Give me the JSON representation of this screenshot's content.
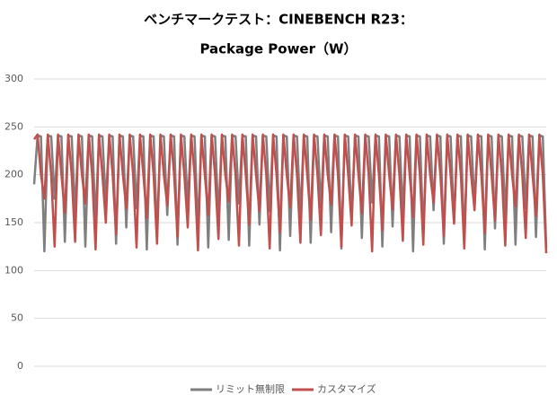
{
  "chart_data": {
    "type": "line",
    "title": "ベンチマークテスト：CINEBENCH R23：",
    "subtitle": "Package Power（W）",
    "ylim": [
      0,
      300
    ],
    "yticks": [
      0,
      50,
      100,
      150,
      200,
      250,
      300
    ],
    "grid": true,
    "series": [
      {
        "name": "リミット無制限",
        "color": "#7f7f7f",
        "values": [
          190,
          241,
          240,
          120,
          241,
          240,
          175,
          241,
          240,
          130,
          241,
          240,
          160,
          241,
          240,
          125,
          241,
          240,
          150,
          241,
          240,
          170,
          241,
          240,
          128,
          241,
          240,
          145,
          241,
          240,
          165,
          241,
          240,
          122,
          241,
          240,
          138,
          241,
          240,
          158,
          241,
          240,
          127,
          241,
          240,
          168,
          241,
          240,
          142,
          241,
          240,
          124,
          241,
          240,
          155,
          241,
          240,
          132,
          241,
          240,
          170,
          241,
          240,
          126,
          241,
          240,
          148,
          241,
          240,
          162,
          241,
          240,
          121,
          241,
          240,
          136,
          241,
          240,
          157,
          241,
          240,
          129,
          241,
          240,
          166,
          241,
          240,
          140,
          241,
          240,
          123,
          241,
          240,
          152,
          241,
          240,
          134,
          241,
          240,
          171,
          241,
          240,
          125,
          241,
          240,
          146,
          241,
          240,
          160,
          241,
          240,
          120,
          241,
          240,
          138,
          241,
          240,
          163,
          241,
          240,
          128,
          241,
          240,
          150,
          241,
          240,
          131,
          241,
          240,
          168,
          241,
          240,
          122,
          241,
          240,
          144,
          241,
          240,
          158,
          241,
          240,
          127,
          241,
          240,
          165,
          241,
          240,
          135,
          241,
          240,
          124
        ]
      },
      {
        "name": "カスタマイズ",
        "color": "#c0504d",
        "values": [
          237,
          242,
          200,
          175,
          242,
          200,
          125,
          242,
          200,
          160,
          242,
          200,
          130,
          242,
          200,
          170,
          242,
          200,
          122,
          242,
          200,
          150,
          242,
          200,
          138,
          242,
          200,
          165,
          242,
          200,
          124,
          242,
          200,
          155,
          242,
          200,
          128,
          242,
          200,
          168,
          242,
          200,
          135,
          242,
          200,
          145,
          242,
          200,
          121,
          242,
          200,
          158,
          242,
          200,
          133,
          242,
          200,
          172,
          242,
          200,
          126,
          242,
          200,
          148,
          242,
          200,
          162,
          242,
          200,
          123,
          242,
          200,
          140,
          242,
          200,
          166,
          242,
          200,
          129,
          242,
          200,
          153,
          242,
          200,
          137,
          242,
          200,
          169,
          242,
          200,
          125,
          242,
          200,
          147,
          242,
          200,
          160,
          242,
          200,
          120,
          242,
          200,
          142,
          242,
          200,
          164,
          242,
          200,
          131,
          242,
          200,
          156,
          242,
          200,
          127,
          242,
          200,
          171,
          242,
          200,
          136,
          242,
          200,
          149,
          242,
          200,
          123,
          242,
          200,
          163,
          242,
          200,
          139,
          242,
          200,
          152,
          242,
          200,
          126,
          242,
          200,
          167,
          242,
          200,
          134,
          242,
          200,
          157,
          242,
          200,
          118
        ]
      }
    ]
  }
}
